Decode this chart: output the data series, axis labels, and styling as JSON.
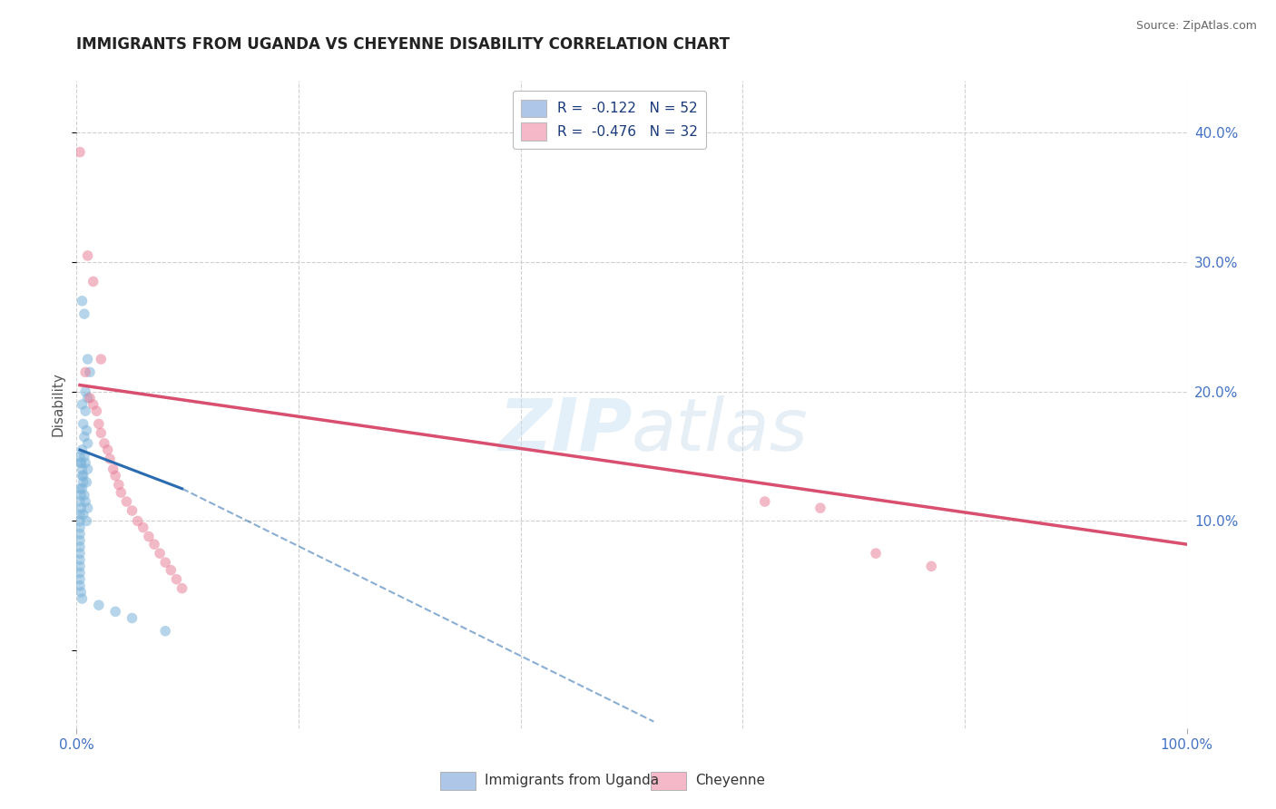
{
  "title": "IMMIGRANTS FROM UGANDA VS CHEYENNE DISABILITY CORRELATION CHART",
  "source": "Source: ZipAtlas.com",
  "ylabel": "Disability",
  "watermark_zip": "ZIP",
  "watermark_atlas": "atlas",
  "legend": [
    {
      "label": "R =  -0.122   N = 52",
      "color": "#aec6e8"
    },
    {
      "label": "R =  -0.476   N = 32",
      "color": "#f4b8c8"
    }
  ],
  "yticks": [
    0.1,
    0.2,
    0.3,
    0.4
  ],
  "ytick_labels": [
    "10.0%",
    "20.0%",
    "30.0%",
    "40.0%"
  ],
  "xlim": [
    0.0,
    1.0
  ],
  "ylim": [
    -0.06,
    0.44
  ],
  "blue_dots": [
    [
      0.005,
      0.27
    ],
    [
      0.007,
      0.26
    ],
    [
      0.01,
      0.225
    ],
    [
      0.012,
      0.215
    ],
    [
      0.008,
      0.2
    ],
    [
      0.01,
      0.195
    ],
    [
      0.005,
      0.19
    ],
    [
      0.008,
      0.185
    ],
    [
      0.006,
      0.175
    ],
    [
      0.009,
      0.17
    ],
    [
      0.007,
      0.165
    ],
    [
      0.01,
      0.16
    ],
    [
      0.005,
      0.155
    ],
    [
      0.007,
      0.15
    ],
    [
      0.008,
      0.145
    ],
    [
      0.01,
      0.14
    ],
    [
      0.006,
      0.135
    ],
    [
      0.009,
      0.13
    ],
    [
      0.005,
      0.125
    ],
    [
      0.007,
      0.12
    ],
    [
      0.008,
      0.115
    ],
    [
      0.01,
      0.11
    ],
    [
      0.006,
      0.105
    ],
    [
      0.009,
      0.1
    ],
    [
      0.005,
      0.135
    ],
    [
      0.006,
      0.13
    ],
    [
      0.004,
      0.145
    ],
    [
      0.005,
      0.14
    ],
    [
      0.003,
      0.15
    ],
    [
      0.004,
      0.145
    ],
    [
      0.003,
      0.125
    ],
    [
      0.004,
      0.12
    ],
    [
      0.003,
      0.115
    ],
    [
      0.004,
      0.11
    ],
    [
      0.003,
      0.105
    ],
    [
      0.003,
      0.1
    ],
    [
      0.003,
      0.095
    ],
    [
      0.003,
      0.09
    ],
    [
      0.003,
      0.085
    ],
    [
      0.003,
      0.08
    ],
    [
      0.003,
      0.075
    ],
    [
      0.003,
      0.07
    ],
    [
      0.003,
      0.065
    ],
    [
      0.003,
      0.06
    ],
    [
      0.003,
      0.055
    ],
    [
      0.003,
      0.05
    ],
    [
      0.004,
      0.045
    ],
    [
      0.005,
      0.04
    ],
    [
      0.02,
      0.035
    ],
    [
      0.035,
      0.03
    ],
    [
      0.05,
      0.025
    ],
    [
      0.08,
      0.015
    ]
  ],
  "pink_dots": [
    [
      0.003,
      0.385
    ],
    [
      0.01,
      0.305
    ],
    [
      0.015,
      0.285
    ],
    [
      0.022,
      0.225
    ],
    [
      0.008,
      0.215
    ],
    [
      0.012,
      0.195
    ],
    [
      0.015,
      0.19
    ],
    [
      0.018,
      0.185
    ],
    [
      0.02,
      0.175
    ],
    [
      0.022,
      0.168
    ],
    [
      0.025,
      0.16
    ],
    [
      0.028,
      0.155
    ],
    [
      0.03,
      0.148
    ],
    [
      0.033,
      0.14
    ],
    [
      0.035,
      0.135
    ],
    [
      0.038,
      0.128
    ],
    [
      0.04,
      0.122
    ],
    [
      0.045,
      0.115
    ],
    [
      0.05,
      0.108
    ],
    [
      0.055,
      0.1
    ],
    [
      0.06,
      0.095
    ],
    [
      0.065,
      0.088
    ],
    [
      0.07,
      0.082
    ],
    [
      0.075,
      0.075
    ],
    [
      0.08,
      0.068
    ],
    [
      0.085,
      0.062
    ],
    [
      0.09,
      0.055
    ],
    [
      0.095,
      0.048
    ],
    [
      0.62,
      0.115
    ],
    [
      0.67,
      0.11
    ],
    [
      0.72,
      0.075
    ],
    [
      0.77,
      0.065
    ]
  ],
  "blue_line_solid": {
    "x0": 0.003,
    "y0": 0.155,
    "x1": 0.095,
    "y1": 0.125
  },
  "blue_line_dashed": {
    "x0": 0.095,
    "y0": 0.125,
    "x1": 0.52,
    "y1": -0.055
  },
  "pink_line": {
    "x0": 0.003,
    "y0": 0.205,
    "x1": 1.0,
    "y1": 0.082
  },
  "bg_color": "#ffffff",
  "dot_alpha": 0.55,
  "dot_size": 70,
  "blue_color": "#7ab3d9",
  "pink_color": "#e8819a",
  "grid_color": "#d0d0d0",
  "tick_color": "#4472c4",
  "title_color": "#222222",
  "bottom_legend": [
    {
      "label": "Immigrants from Uganda",
      "color": "#aec6e8"
    },
    {
      "label": "Cheyenne",
      "color": "#f4b8c8"
    }
  ]
}
